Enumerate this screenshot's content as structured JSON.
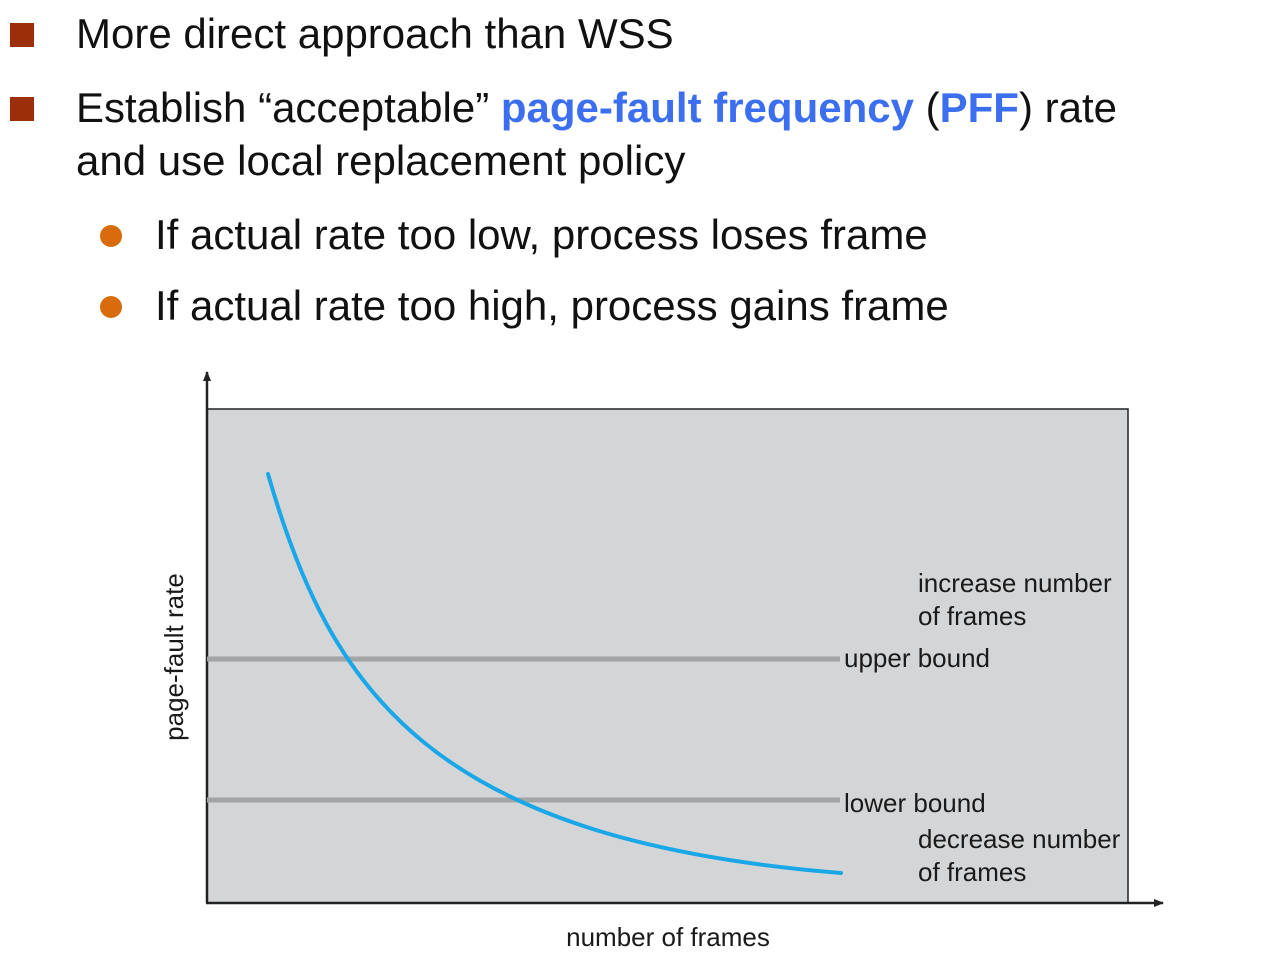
{
  "bullets": {
    "b1": {
      "text": "More direct approach than WSS"
    },
    "b2": {
      "pre": "Establish “acceptable” ",
      "term": "page-fault frequency",
      "mid1": " (",
      "abbr": "PFF",
      "mid2": ") rate",
      "line2": "and use local replacement policy"
    },
    "sub1": "If actual rate too low, process loses frame",
    "sub2": "If actual rate too high, process gains frame"
  },
  "colors": {
    "square_bullet": "#9b2f0a",
    "round_bullet": "#d86c0c",
    "accent": "#3b6ff0",
    "curve": "#1aa7e8",
    "plot_bg": "#d4d5d7",
    "bound_line": "#a3a4a6"
  },
  "diagram": {
    "y_axis_label": "page-fault rate",
    "x_axis_label": "number of frames",
    "increase_label": [
      "increase number",
      "of frames"
    ],
    "upper_bound_label": "upper bound",
    "lower_bound_label": "lower bound",
    "decrease_label": [
      "decrease number",
      "of frames"
    ]
  }
}
